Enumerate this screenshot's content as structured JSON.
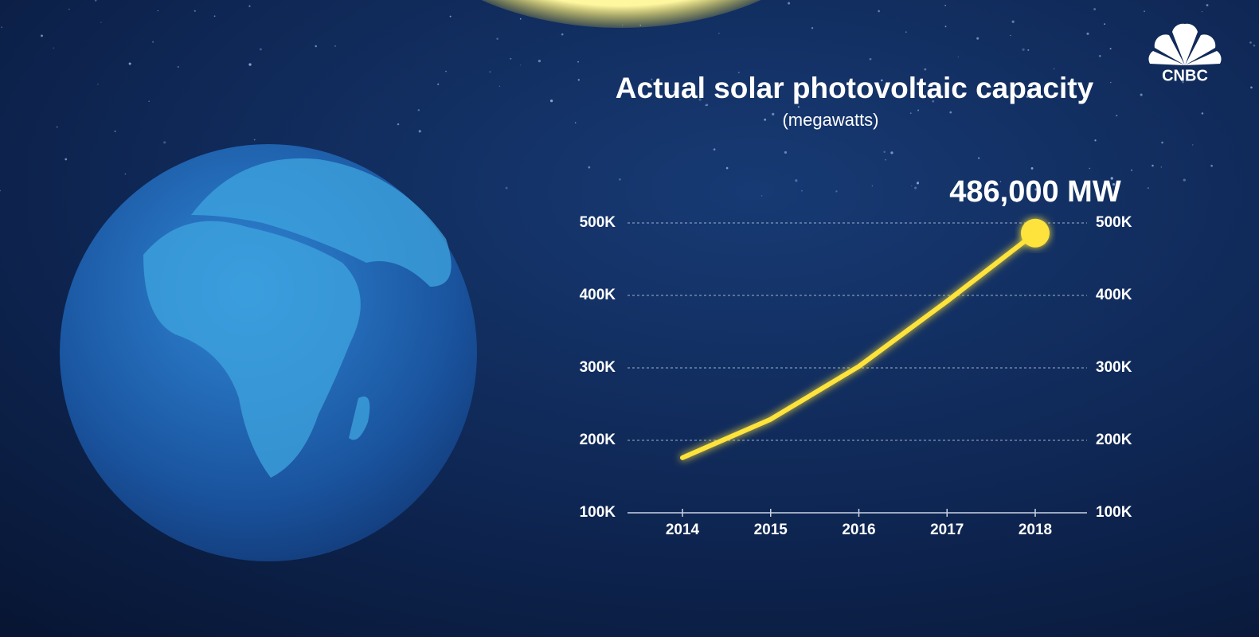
{
  "chart_data": {
    "type": "line",
    "title": "Actual solar photovoltaic capacity",
    "subtitle": "(megawatts)",
    "logo": "CNBC",
    "categories": [
      "2014",
      "2015",
      "2016",
      "2017",
      "2018"
    ],
    "series": [
      {
        "name": "Solar PV capacity",
        "color": "#fde33a",
        "values": [
          176000,
          229000,
          302000,
          392000,
          486000
        ],
        "value_labels": [
          null,
          null,
          null,
          null,
          "486,000 MW"
        ]
      }
    ],
    "ylim": [
      100000,
      500000
    ],
    "yticks": [
      {
        "value": 100000,
        "label": "100K"
      },
      {
        "value": 200000,
        "label": "200K"
      },
      {
        "value": 300000,
        "label": "300K"
      },
      {
        "value": 400000,
        "label": "400K"
      },
      {
        "value": 500000,
        "label": "500K"
      }
    ],
    "y2lim": [
      100000,
      500000
    ],
    "y2ticks": [
      {
        "value": 100000,
        "label": "100K"
      },
      {
        "value": 200000,
        "label": "200K"
      },
      {
        "value": 300000,
        "label": "300K"
      },
      {
        "value": 400000,
        "label": "400K"
      },
      {
        "value": 500000,
        "label": "500K"
      }
    ],
    "grid": true
  }
}
